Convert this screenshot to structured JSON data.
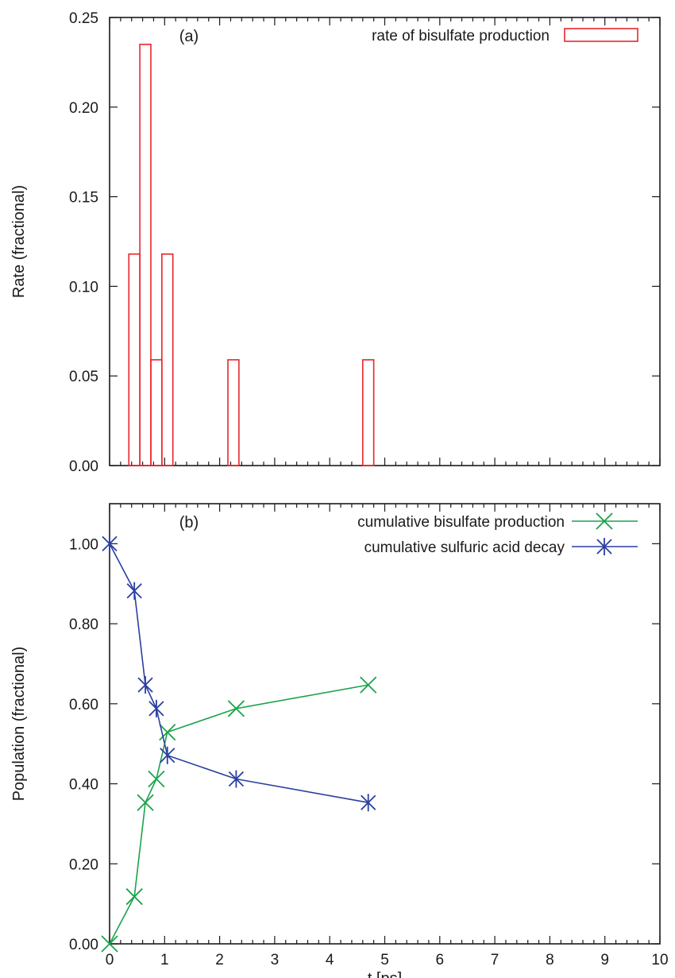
{
  "colors": {
    "rate": "#e8262b",
    "bisulfate": "#1aa34a",
    "sulfuric": "#2b3fa0",
    "axis": "#1a1a1a"
  },
  "chart_data": [
    {
      "type": "bar",
      "panel_label": "(a)",
      "ylabel": "Rate (fractional)",
      "xlabel": "",
      "xlim": [
        0,
        10
      ],
      "ylim": [
        0,
        0.25
      ],
      "y_ticks": [
        "0.00",
        "0.05",
        "0.10",
        "0.15",
        "0.20",
        "0.25"
      ],
      "grid": false,
      "legend_position": "top-right",
      "series": [
        {
          "name": "rate of bisulfate production",
          "style": "hollow-bar",
          "color_key": "rate",
          "bar_width": 0.2,
          "x": [
            0.45,
            0.65,
            0.85,
            1.05,
            2.25,
            4.7
          ],
          "values": [
            0.118,
            0.235,
            0.059,
            0.118,
            0.059,
            0.059
          ]
        }
      ]
    },
    {
      "type": "line",
      "panel_label": "(b)",
      "ylabel": "Population (fractional)",
      "xlabel": "t [ps]",
      "xlim": [
        0,
        10
      ],
      "ylim": [
        0,
        1.1
      ],
      "x_ticks": [
        "0",
        "1",
        "2",
        "3",
        "4",
        "5",
        "6",
        "7",
        "8",
        "9",
        "10"
      ],
      "y_ticks": [
        "0.00",
        "0.20",
        "0.40",
        "0.60",
        "0.80",
        "1.00"
      ],
      "grid": false,
      "legend_position": "top-right",
      "series": [
        {
          "name": "cumulative bisulfate production",
          "marker": "x",
          "color_key": "bisulfate",
          "x": [
            0,
            0.45,
            0.65,
            0.85,
            1.05,
            2.3,
            4.7
          ],
          "values": [
            0,
            0.118,
            0.353,
            0.412,
            0.529,
            0.588,
            0.647
          ]
        },
        {
          "name": "cumulative sulfuric acid decay",
          "marker": "asterisk",
          "color_key": "sulfuric",
          "x": [
            0,
            0.45,
            0.65,
            0.85,
            1.05,
            2.3,
            4.7
          ],
          "values": [
            1.0,
            0.882,
            0.647,
            0.588,
            0.471,
            0.412,
            0.353
          ]
        }
      ]
    }
  ]
}
